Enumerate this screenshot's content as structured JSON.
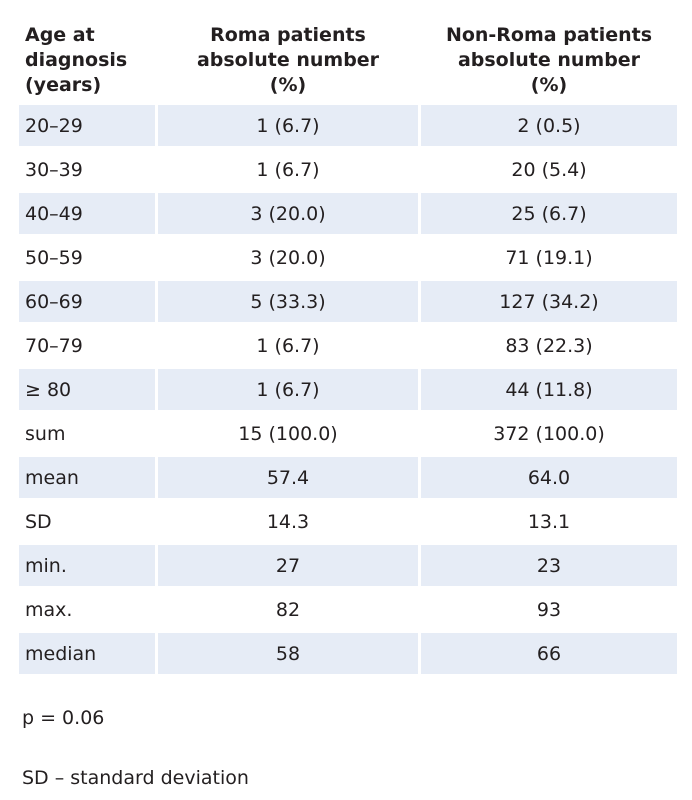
{
  "table": {
    "headers": [
      [
        "Age at",
        "diagnosis",
        "(years)"
      ],
      [
        "Roma patients",
        "absolute number",
        "(%)"
      ],
      [
        "Non-Roma patients",
        "absolute number",
        "(%)"
      ]
    ],
    "rows": [
      [
        "20–29",
        "1 (6.7)",
        "2 (0.5)"
      ],
      [
        "30–39",
        "1 (6.7)",
        "20 (5.4)"
      ],
      [
        "40–49",
        "3 (20.0)",
        "25 (6.7)"
      ],
      [
        "50–59",
        "3 (20.0)",
        "71 (19.1)"
      ],
      [
        "60–69",
        "5 (33.3)",
        "127 (34.2)"
      ],
      [
        "70–79",
        "1 (6.7)",
        "83 (22.3)"
      ],
      [
        "≥ 80",
        "1 (6.7)",
        "44 (11.8)"
      ],
      [
        "sum",
        "15 (100.0)",
        "372 (100.0)"
      ],
      [
        "mean",
        "57.4",
        "64.0"
      ],
      [
        "SD",
        "14.3",
        "13.1"
      ],
      [
        "min.",
        "27",
        "23"
      ],
      [
        "max.",
        "82",
        "93"
      ],
      [
        "median",
        "58",
        "66"
      ]
    ]
  },
  "footer": {
    "p_value": "p = 0.06",
    "abbreviation": "SD – standard deviation"
  },
  "colors": {
    "row_shade": "#e6ecf6",
    "text": "#231f20"
  }
}
